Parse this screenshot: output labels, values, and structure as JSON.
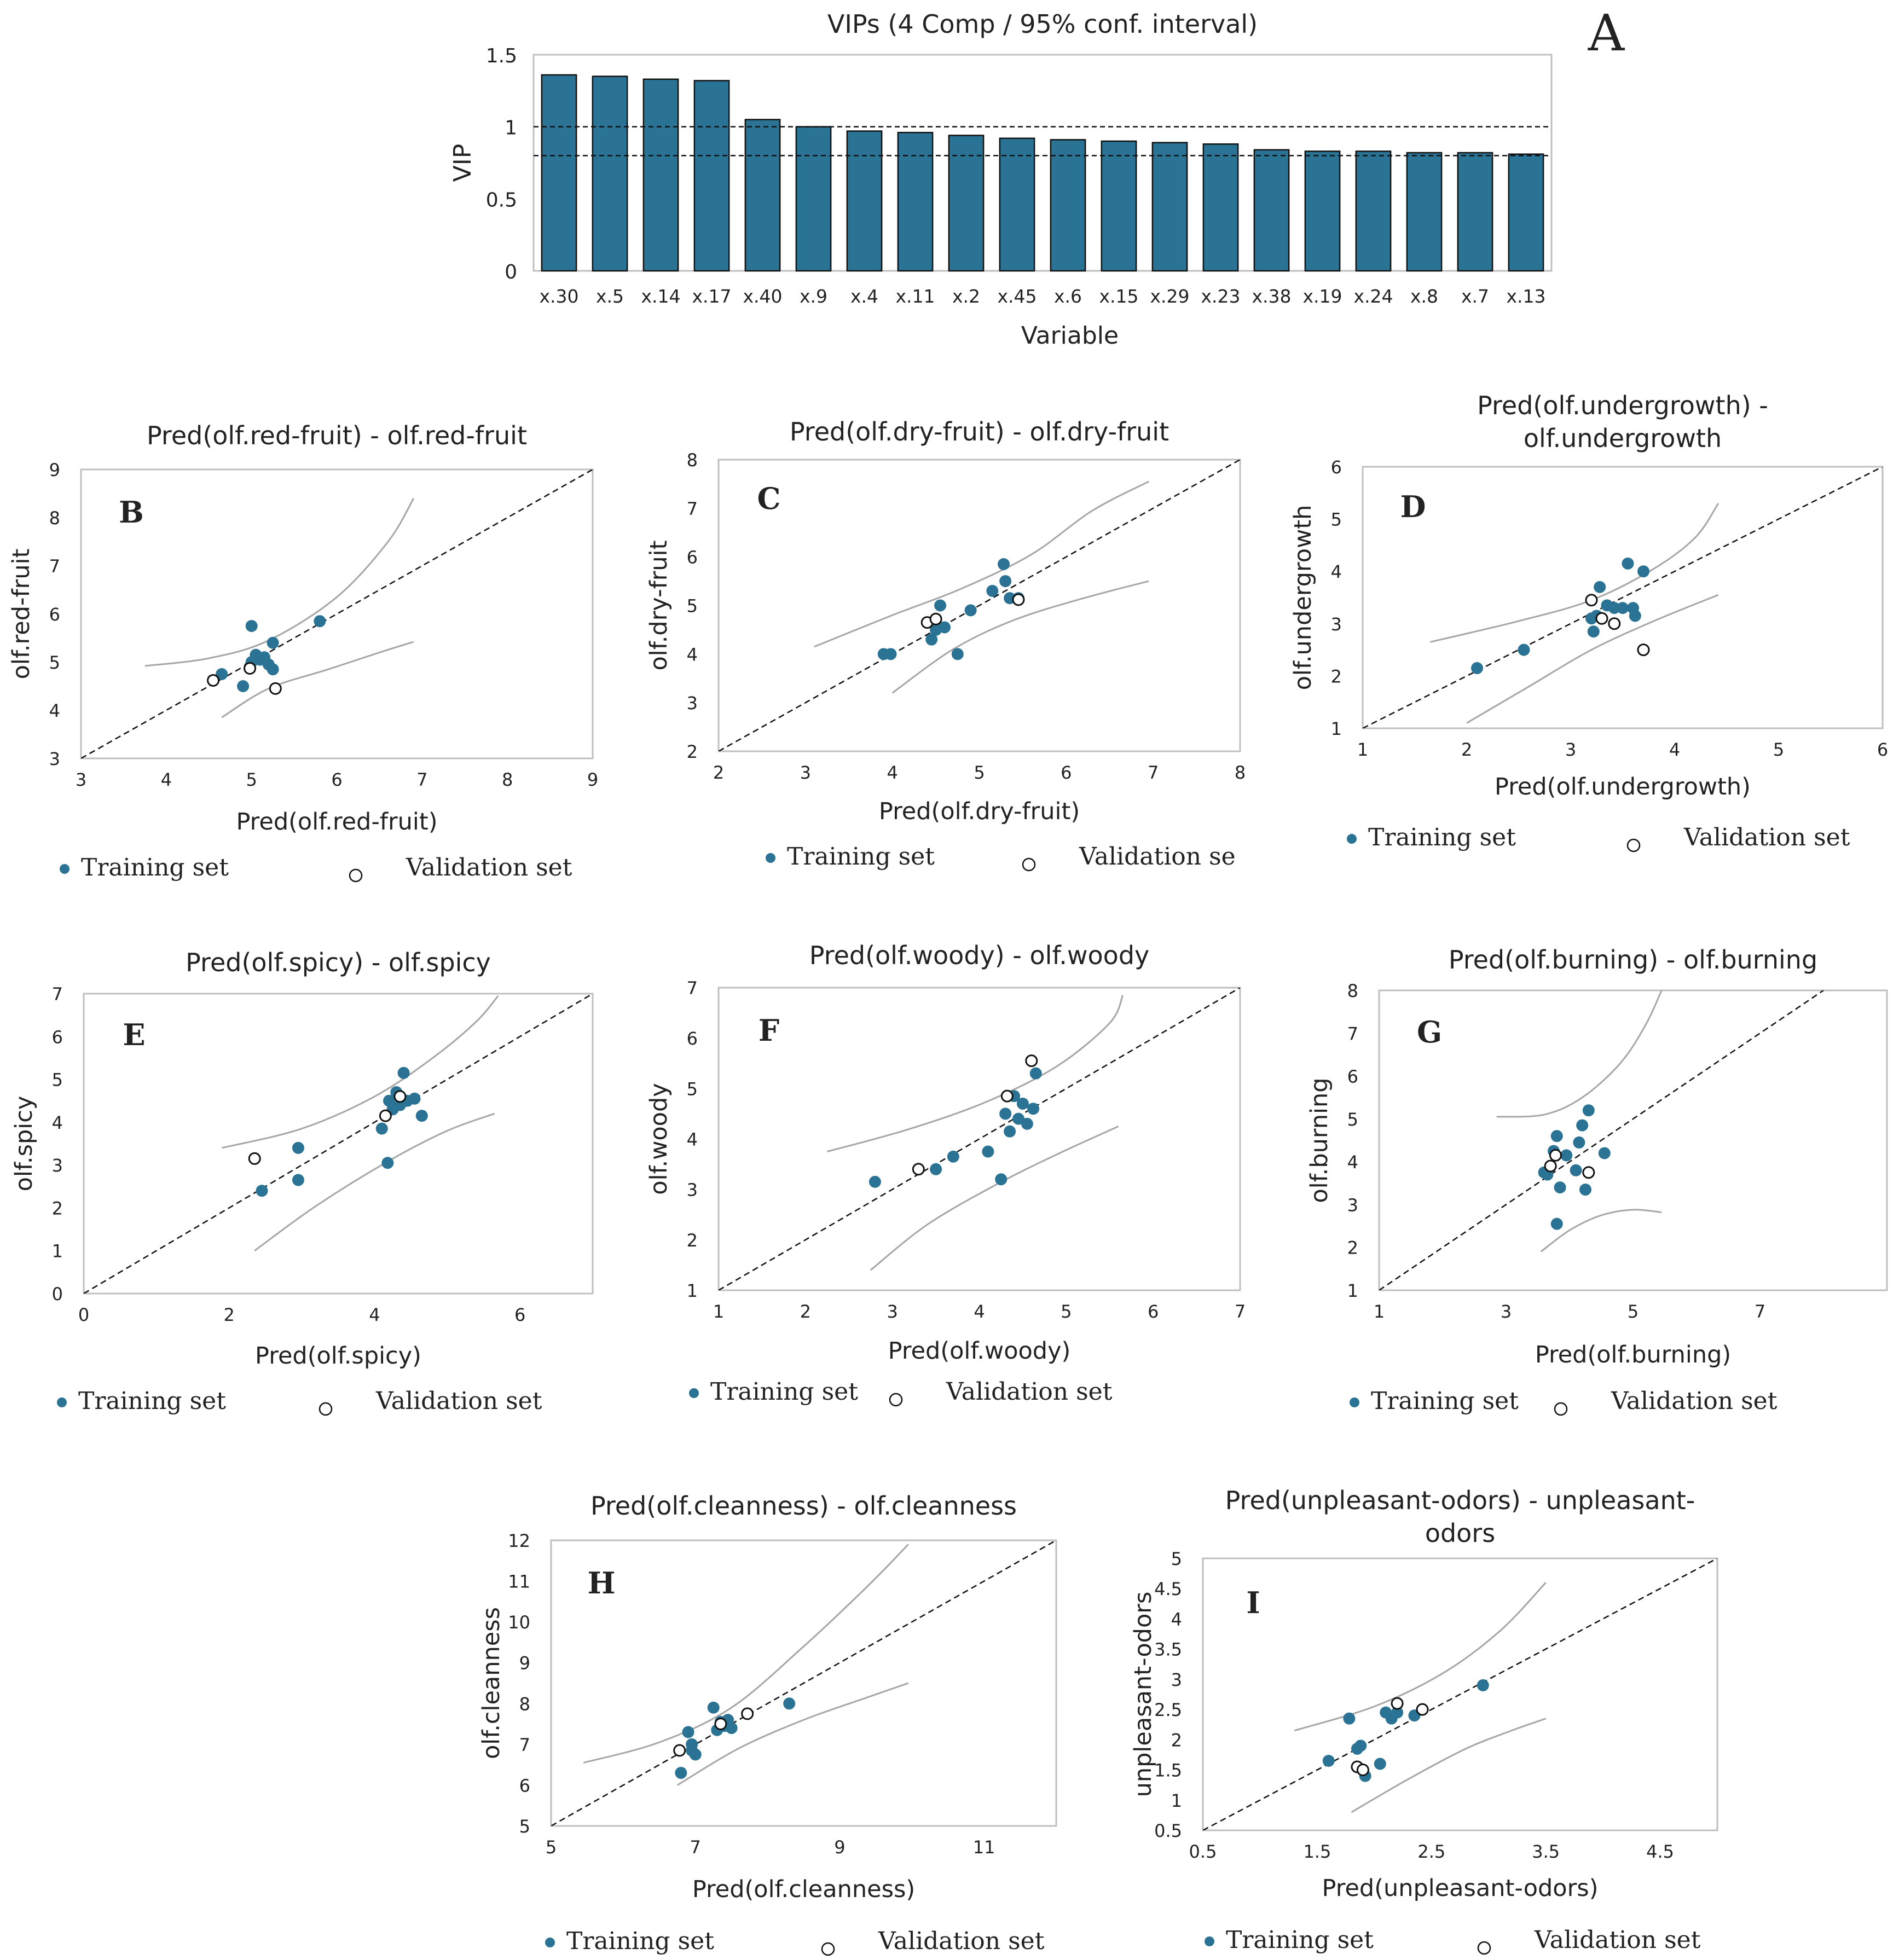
{
  "figure_letter": "A",
  "legend": {
    "training": "Training set",
    "validation": "Validation set",
    "validation_truncated": "Validation se"
  },
  "colors": {
    "bar": "#2b7394",
    "point": "#2b7394",
    "frame": "#bfbfbf",
    "band": "#a6a6a6",
    "text": "#222222"
  },
  "chart_data": [
    {
      "id": "vip",
      "type": "bar",
      "title": "VIPs (4 Comp / 95% conf. interval)",
      "xlabel": "Variable",
      "ylabel": "VIP",
      "categories": [
        "x.30",
        "x.5",
        "x.14",
        "x.17",
        "x.40",
        "x.9",
        "x.4",
        "x.11",
        "x.2",
        "x.45",
        "x.6",
        "x.15",
        "x.29",
        "x.23",
        "x.38",
        "x.19",
        "x.24",
        "x.8",
        "x.7",
        "x.13"
      ],
      "values": [
        1.36,
        1.35,
        1.33,
        1.32,
        1.05,
        1.0,
        0.97,
        0.96,
        0.94,
        0.92,
        0.91,
        0.9,
        0.89,
        0.88,
        0.84,
        0.83,
        0.83,
        0.82,
        0.82,
        0.81
      ],
      "ylim": [
        0,
        1.5
      ],
      "yticks": [
        0,
        0.5,
        1,
        1.5
      ],
      "ytick_labels": [
        "0",
        "0.5",
        "1",
        "1.5"
      ],
      "reference_lines": [
        1.0,
        0.8
      ]
    },
    {
      "id": "B",
      "type": "scatter",
      "letter": "B",
      "title": [
        "Pred(olf.red-fruit) - olf.red-fruit"
      ],
      "xlabel": "Pred(olf.red-fruit)",
      "ylabel": "olf.red-fruit",
      "xlim": [
        3,
        9
      ],
      "ylim": [
        3,
        9
      ],
      "xticks": [
        3,
        4,
        5,
        6,
        7,
        8,
        9
      ],
      "yticks": [
        3,
        4,
        5,
        6,
        7,
        8,
        9
      ],
      "train": [
        [
          4.65,
          4.75
        ],
        [
          4.9,
          4.5
        ],
        [
          5.0,
          5.0
        ],
        [
          5.05,
          5.15
        ],
        [
          5.1,
          5.05
        ],
        [
          5.15,
          5.1
        ],
        [
          5.2,
          4.95
        ],
        [
          5.25,
          4.85
        ],
        [
          5.25,
          5.4
        ],
        [
          5.0,
          5.75
        ],
        [
          5.8,
          5.85
        ],
        [
          4.98,
          4.9
        ]
      ],
      "valid": [
        [
          4.55,
          4.62
        ],
        [
          4.98,
          4.87
        ],
        [
          5.28,
          4.45
        ]
      ],
      "band_upper": [
        [
          3.75,
          4.92
        ],
        [
          4.5,
          5.08
        ],
        [
          5.2,
          5.45
        ],
        [
          6.0,
          6.35
        ],
        [
          6.6,
          7.5
        ],
        [
          6.9,
          8.4
        ]
      ],
      "band_lower": [
        [
          4.65,
          3.85
        ],
        [
          5.2,
          4.45
        ],
        [
          5.9,
          4.85
        ],
        [
          6.5,
          5.2
        ],
        [
          6.9,
          5.42
        ]
      ]
    },
    {
      "id": "C",
      "type": "scatter",
      "letter": "C",
      "title": [
        "Pred(olf.dry-fruit) - olf.dry-fruit"
      ],
      "xlabel": "Pred(olf.dry-fruit)",
      "ylabel": "olf.dry-fruit",
      "xlim": [
        2,
        8
      ],
      "ylim": [
        2,
        8
      ],
      "xticks": [
        2,
        3,
        4,
        5,
        6,
        7,
        8
      ],
      "yticks": [
        2,
        3,
        4,
        5,
        6,
        7,
        8
      ],
      "train": [
        [
          3.9,
          4.0
        ],
        [
          3.98,
          4.0
        ],
        [
          4.45,
          4.3
        ],
        [
          4.5,
          4.5
        ],
        [
          4.55,
          5.0
        ],
        [
          4.6,
          4.55
        ],
        [
          4.75,
          4.0
        ],
        [
          4.9,
          4.9
        ],
        [
          5.15,
          5.3
        ],
        [
          5.28,
          5.85
        ],
        [
          5.3,
          5.5
        ],
        [
          5.35,
          5.15
        ],
        [
          5.45,
          5.15
        ]
      ],
      "valid": [
        [
          4.4,
          4.65
        ],
        [
          4.5,
          4.72
        ],
        [
          5.45,
          5.12
        ]
      ],
      "band_upper": [
        [
          3.1,
          4.15
        ],
        [
          4.0,
          4.8
        ],
        [
          4.8,
          5.35
        ],
        [
          5.6,
          6.05
        ],
        [
          6.3,
          6.95
        ],
        [
          6.95,
          7.55
        ]
      ],
      "band_lower": [
        [
          4.0,
          3.2
        ],
        [
          4.7,
          4.1
        ],
        [
          5.4,
          4.7
        ],
        [
          6.2,
          5.15
        ],
        [
          6.95,
          5.5
        ]
      ]
    },
    {
      "id": "D",
      "type": "scatter",
      "letter": "D",
      "title": [
        "Pred(olf.undergrowth) -",
        "olf.undergrowth"
      ],
      "xlabel": "Pred(olf.undergrowth)",
      "ylabel": "olf.undergrowth",
      "xlim": [
        1,
        6
      ],
      "ylim": [
        1,
        6
      ],
      "xticks": [
        1,
        2,
        3,
        4,
        5,
        6
      ],
      "yticks": [
        1,
        2,
        3,
        4,
        5,
        6
      ],
      "train": [
        [
          2.1,
          2.15
        ],
        [
          2.55,
          2.5
        ],
        [
          3.2,
          3.1
        ],
        [
          3.22,
          2.85
        ],
        [
          3.25,
          3.15
        ],
        [
          3.28,
          3.7
        ],
        [
          3.35,
          3.35
        ],
        [
          3.42,
          3.3
        ],
        [
          3.5,
          3.3
        ],
        [
          3.55,
          4.15
        ],
        [
          3.6,
          3.3
        ],
        [
          3.62,
          3.15
        ],
        [
          3.7,
          4.0
        ]
      ],
      "valid": [
        [
          3.2,
          3.45
        ],
        [
          3.3,
          3.1
        ],
        [
          3.42,
          3.0
        ],
        [
          3.7,
          2.5
        ]
      ],
      "band_upper": [
        [
          1.65,
          2.65
        ],
        [
          2.5,
          3.05
        ],
        [
          3.2,
          3.45
        ],
        [
          3.8,
          4.05
        ],
        [
          4.2,
          4.65
        ],
        [
          4.42,
          5.3
        ]
      ],
      "band_lower": [
        [
          2.0,
          1.1
        ],
        [
          2.6,
          1.8
        ],
        [
          3.2,
          2.5
        ],
        [
          3.8,
          3.05
        ],
        [
          4.42,
          3.55
        ]
      ]
    },
    {
      "id": "E",
      "type": "scatter",
      "letter": "E",
      "title": [
        "Pred(olf.spicy) - olf.spicy"
      ],
      "xlabel": "Pred(olf.spicy)",
      "ylabel": "olf.spicy",
      "xlim": [
        0,
        7
      ],
      "ylim": [
        0,
        7
      ],
      "xticks": [
        0,
        2,
        4,
        6
      ],
      "yticks": [
        0,
        1,
        2,
        3,
        4,
        5,
        6,
        7
      ],
      "train": [
        [
          2.45,
          2.4
        ],
        [
          2.95,
          2.65
        ],
        [
          2.95,
          3.4
        ],
        [
          4.1,
          3.85
        ],
        [
          4.18,
          3.05
        ],
        [
          4.2,
          4.5
        ],
        [
          4.25,
          4.3
        ],
        [
          4.3,
          4.7
        ],
        [
          4.35,
          4.4
        ],
        [
          4.4,
          5.15
        ],
        [
          4.45,
          4.5
        ],
        [
          4.55,
          4.55
        ],
        [
          4.65,
          4.15
        ]
      ],
      "valid": [
        [
          2.35,
          3.15
        ],
        [
          4.15,
          4.15
        ],
        [
          4.35,
          4.6
        ]
      ],
      "band_upper": [
        [
          1.9,
          3.4
        ],
        [
          3.0,
          3.85
        ],
        [
          4.0,
          4.6
        ],
        [
          4.8,
          5.5
        ],
        [
          5.4,
          6.35
        ],
        [
          5.7,
          6.95
        ]
      ],
      "band_lower": [
        [
          2.35,
          1.0
        ],
        [
          3.2,
          2.05
        ],
        [
          4.2,
          3.1
        ],
        [
          5.0,
          3.8
        ],
        [
          5.65,
          4.2
        ]
      ]
    },
    {
      "id": "F",
      "type": "scatter",
      "letter": "F",
      "title": [
        "Pred(olf.woody) - olf.woody"
      ],
      "xlabel": "Pred(olf.woody)",
      "ylabel": "olf.woody",
      "xlim": [
        1,
        7
      ],
      "ylim": [
        1,
        7
      ],
      "xticks": [
        1,
        2,
        3,
        4,
        5,
        6,
        7
      ],
      "yticks": [
        1,
        2,
        3,
        4,
        5,
        6,
        7
      ],
      "train": [
        [
          2.8,
          3.15
        ],
        [
          3.5,
          3.4
        ],
        [
          3.7,
          3.65
        ],
        [
          4.1,
          3.75
        ],
        [
          4.25,
          3.2
        ],
        [
          4.3,
          4.5
        ],
        [
          4.35,
          4.15
        ],
        [
          4.4,
          4.85
        ],
        [
          4.45,
          4.4
        ],
        [
          4.5,
          4.7
        ],
        [
          4.55,
          4.3
        ],
        [
          4.62,
          4.6
        ],
        [
          4.65,
          5.3
        ]
      ],
      "valid": [
        [
          3.3,
          3.4
        ],
        [
          4.32,
          4.85
        ],
        [
          4.6,
          5.55
        ]
      ],
      "band_upper": [
        [
          2.25,
          3.75
        ],
        [
          3.2,
          4.2
        ],
        [
          4.1,
          4.75
        ],
        [
          4.9,
          5.45
        ],
        [
          5.5,
          6.3
        ],
        [
          5.65,
          6.85
        ]
      ],
      "band_lower": [
        [
          2.75,
          1.4
        ],
        [
          3.4,
          2.3
        ],
        [
          4.2,
          3.1
        ],
        [
          4.9,
          3.7
        ],
        [
          5.6,
          4.25
        ]
      ]
    },
    {
      "id": "G",
      "type": "scatter",
      "letter": "G",
      "title": [
        "Pred(olf.burning) - olf.burning"
      ],
      "xlabel": "Pred(olf.burning)",
      "ylabel": "olf.burning",
      "xlim": [
        1,
        9
      ],
      "ylim": [
        1,
        8
      ],
      "xticks": [
        1,
        3,
        5,
        7
      ],
      "yticks": [
        1,
        2,
        3,
        4,
        5,
        6,
        7,
        8
      ],
      "train": [
        [
          3.6,
          3.75
        ],
        [
          3.65,
          3.7
        ],
        [
          3.75,
          4.25
        ],
        [
          3.8,
          2.55
        ],
        [
          3.8,
          4.6
        ],
        [
          3.85,
          3.4
        ],
        [
          3.95,
          4.15
        ],
        [
          4.1,
          3.8
        ],
        [
          4.15,
          4.45
        ],
        [
          4.2,
          4.85
        ],
        [
          4.25,
          3.35
        ],
        [
          4.3,
          5.2
        ],
        [
          4.55,
          4.2
        ]
      ],
      "valid": [
        [
          3.7,
          3.9
        ],
        [
          3.78,
          4.15
        ],
        [
          4.3,
          3.75
        ]
      ],
      "band_upper": [
        [
          2.85,
          5.05
        ],
        [
          3.6,
          5.1
        ],
        [
          4.2,
          5.5
        ],
        [
          4.8,
          6.3
        ],
        [
          5.2,
          7.2
        ],
        [
          5.45,
          8.0
        ]
      ],
      "band_lower": [
        [
          3.55,
          1.9
        ],
        [
          4.0,
          2.4
        ],
        [
          4.5,
          2.75
        ],
        [
          5.0,
          2.88
        ],
        [
          5.45,
          2.82
        ]
      ]
    },
    {
      "id": "H",
      "type": "scatter",
      "letter": "H",
      "title": [
        "Pred(olf.cleanness) - olf.cleanness"
      ],
      "xlabel": "Pred(olf.cleanness)",
      "ylabel": "olf.cleanness",
      "xlim": [
        5,
        12
      ],
      "ylim": [
        5,
        12
      ],
      "xticks": [
        5,
        7,
        9,
        11
      ],
      "yticks": [
        5,
        6,
        7,
        8,
        9,
        10,
        11,
        12
      ],
      "train": [
        [
          6.8,
          6.3
        ],
        [
          6.9,
          7.3
        ],
        [
          6.95,
          7.0
        ],
        [
          6.95,
          6.85
        ],
        [
          7.0,
          6.75
        ],
        [
          7.25,
          7.9
        ],
        [
          7.3,
          7.35
        ],
        [
          7.35,
          7.55
        ],
        [
          7.4,
          7.45
        ],
        [
          7.45,
          7.6
        ],
        [
          7.5,
          7.4
        ],
        [
          8.3,
          8.0
        ]
      ],
      "valid": [
        [
          6.78,
          6.85
        ],
        [
          7.35,
          7.5
        ],
        [
          7.72,
          7.75
        ]
      ],
      "band_upper": [
        [
          5.45,
          6.55
        ],
        [
          6.5,
          7.05
        ],
        [
          7.5,
          7.9
        ],
        [
          8.5,
          9.4
        ],
        [
          9.4,
          10.9
        ],
        [
          9.95,
          11.9
        ]
      ],
      "band_lower": [
        [
          6.75,
          6.0
        ],
        [
          7.6,
          6.9
        ],
        [
          8.5,
          7.6
        ],
        [
          9.3,
          8.1
        ],
        [
          9.95,
          8.5
        ]
      ]
    },
    {
      "id": "I",
      "type": "scatter",
      "letter": "I",
      "title": [
        "Pred(unpleasant-odors) - unpleasant-",
        "odors"
      ],
      "xlabel": "Pred(unpleasant-odors)",
      "ylabel": "unpleasant-odors",
      "xlim": [
        0.5,
        5
      ],
      "ylim": [
        0.5,
        5
      ],
      "xticks": [
        0.5,
        1.5,
        2.5,
        3.5,
        4.5
      ],
      "yticks": [
        0.5,
        1,
        1.5,
        2,
        2.5,
        3,
        3.5,
        4,
        4.5,
        5
      ],
      "xtick_labels": [
        "0.5",
        "1.5",
        "2.5",
        "3.5",
        "4.5"
      ],
      "ytick_labels": [
        "0.5",
        "1",
        "1.5",
        "2",
        "2.5",
        "3",
        "3.5",
        "4",
        "4.5",
        "5"
      ],
      "train": [
        [
          1.6,
          1.65
        ],
        [
          1.78,
          2.35
        ],
        [
          1.85,
          1.85
        ],
        [
          1.88,
          1.9
        ],
        [
          1.92,
          1.4
        ],
        [
          2.05,
          1.6
        ],
        [
          2.1,
          2.45
        ],
        [
          2.15,
          2.35
        ],
        [
          2.2,
          2.45
        ],
        [
          2.35,
          2.4
        ],
        [
          2.95,
          2.9
        ]
      ],
      "valid": [
        [
          1.85,
          1.55
        ],
        [
          1.9,
          1.5
        ],
        [
          2.2,
          2.6
        ],
        [
          2.42,
          2.5
        ]
      ],
      "band_upper": [
        [
          1.3,
          2.15
        ],
        [
          2.0,
          2.55
        ],
        [
          2.6,
          3.1
        ],
        [
          3.1,
          3.8
        ],
        [
          3.5,
          4.6
        ]
      ],
      "band_lower": [
        [
          1.8,
          0.8
        ],
        [
          2.3,
          1.35
        ],
        [
          2.8,
          1.85
        ],
        [
          3.2,
          2.15
        ],
        [
          3.5,
          2.35
        ]
      ]
    }
  ]
}
